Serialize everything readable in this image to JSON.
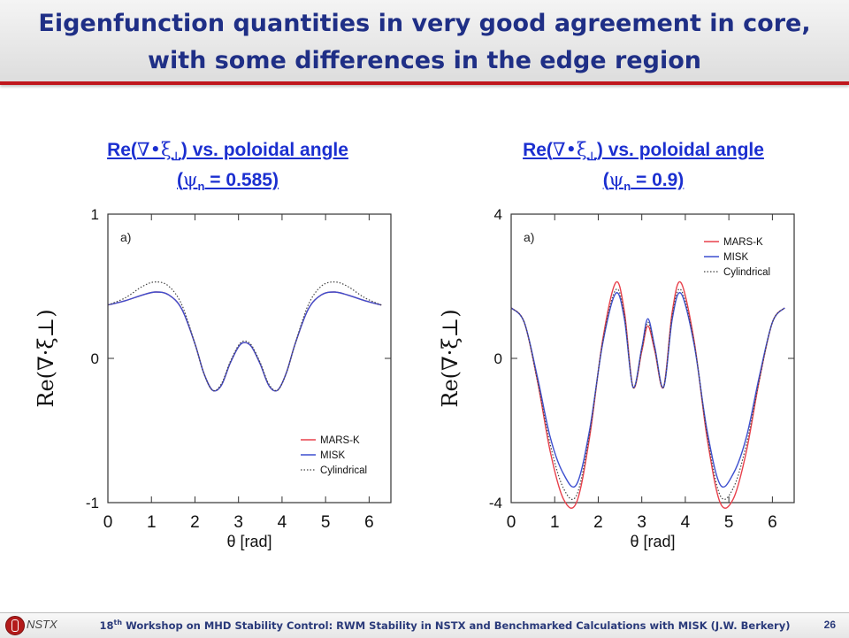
{
  "slide": {
    "title_line1": "Eigenfunction quantities in very good  agreement in core,",
    "title_line2": "with some differences in the edge region",
    "footer_brand": "NSTX",
    "footer_text_pre": "18",
    "footer_text_sup": "th",
    "footer_text_post": " Workshop on MHD Stability Control: RWM Stability in NSTX and Benchmarked Calculations with MISK (J.W. Berkery)",
    "page_number": "26",
    "colors": {
      "title": "#1f2f86",
      "heading": "#1b2fd0",
      "rule": "#c0161c",
      "mars": "#e8404b",
      "misk": "#3d4fcf",
      "cyl": "#444444"
    }
  },
  "panels": [
    {
      "heading_pre": "Re(",
      "heading_sym": "∇•ξ",
      "heading_sub": "⊥",
      "heading_post": ") vs. poloidal angle",
      "psi_pre": "(",
      "psi_sym": "ψ",
      "psi_sub": "n",
      "psi_post": " = 0.585)"
    },
    {
      "heading_pre": "Re(",
      "heading_sym": "∇•ξ",
      "heading_sub": "⊥",
      "heading_post": ") vs. poloidal angle",
      "psi_pre": "(",
      "psi_sym": "ψ",
      "psi_sub": "n",
      "psi_post": " = 0.9)"
    }
  ],
  "chart_data": [
    {
      "type": "line",
      "panel_label": "a)",
      "xlabel": "θ [rad]",
      "ylabel": "Re(∇·ξ⊥)",
      "xlim": [
        0,
        6.5
      ],
      "ylim": [
        -1,
        1
      ],
      "xticks": [
        0,
        1,
        2,
        3,
        4,
        5,
        6
      ],
      "yticks": [
        -1,
        0,
        1
      ],
      "legend_position": "bottom-right",
      "series": [
        {
          "name": "MARS-K",
          "style": "solid",
          "color": "#e8404b",
          "x": [
            0,
            0.4,
            0.8,
            1.1,
            1.4,
            1.7,
            2.0,
            2.2,
            2.4,
            2.6,
            2.8,
            3.0,
            3.14,
            3.3,
            3.5,
            3.7,
            3.9,
            4.1,
            4.3,
            4.6,
            4.9,
            5.2,
            5.5,
            5.9,
            6.28
          ],
          "y": [
            0.37,
            0.4,
            0.44,
            0.46,
            0.44,
            0.34,
            0.1,
            -0.1,
            -0.22,
            -0.19,
            -0.04,
            0.08,
            0.11,
            0.08,
            -0.04,
            -0.19,
            -0.22,
            -0.1,
            0.1,
            0.34,
            0.44,
            0.46,
            0.44,
            0.4,
            0.37
          ]
        },
        {
          "name": "MISK",
          "style": "solid",
          "color": "#3d4fcf",
          "x": [
            0,
            0.4,
            0.8,
            1.1,
            1.4,
            1.7,
            2.0,
            2.2,
            2.4,
            2.6,
            2.8,
            3.0,
            3.14,
            3.3,
            3.5,
            3.7,
            3.9,
            4.1,
            4.3,
            4.6,
            4.9,
            5.2,
            5.5,
            5.9,
            6.28
          ],
          "y": [
            0.37,
            0.4,
            0.44,
            0.46,
            0.44,
            0.34,
            0.1,
            -0.1,
            -0.22,
            -0.19,
            -0.04,
            0.08,
            0.11,
            0.08,
            -0.04,
            -0.19,
            -0.22,
            -0.1,
            0.1,
            0.34,
            0.44,
            0.46,
            0.44,
            0.4,
            0.37
          ]
        },
        {
          "name": "Cylindrical",
          "style": "dotted",
          "color": "#444444",
          "x": [
            0,
            0.4,
            0.8,
            1.1,
            1.4,
            1.7,
            2.0,
            2.2,
            2.4,
            2.6,
            2.8,
            3.0,
            3.14,
            3.3,
            3.5,
            3.7,
            3.9,
            4.1,
            4.3,
            4.6,
            4.9,
            5.2,
            5.5,
            5.9,
            6.28
          ],
          "y": [
            0.37,
            0.42,
            0.5,
            0.53,
            0.5,
            0.37,
            0.1,
            -0.1,
            -0.22,
            -0.18,
            -0.03,
            0.09,
            0.12,
            0.09,
            -0.03,
            -0.18,
            -0.22,
            -0.1,
            0.1,
            0.37,
            0.5,
            0.53,
            0.5,
            0.42,
            0.37
          ]
        }
      ]
    },
    {
      "type": "line",
      "panel_label": "a)",
      "xlabel": "θ [rad]",
      "ylabel": "Re(∇·ξ⊥)",
      "xlim": [
        0,
        6.5
      ],
      "ylim": [
        -4,
        4
      ],
      "xticks": [
        0,
        1,
        2,
        3,
        4,
        5,
        6
      ],
      "yticks": [
        -4,
        0,
        4
      ],
      "legend_position": "top-right",
      "series": [
        {
          "name": "MARS-K",
          "style": "solid",
          "color": "#e8404b",
          "x": [
            0,
            0.3,
            0.6,
            0.9,
            1.2,
            1.5,
            1.8,
            2.1,
            2.4,
            2.6,
            2.8,
            3.0,
            3.14,
            3.3,
            3.5,
            3.7,
            3.9,
            4.2,
            4.5,
            4.8,
            5.1,
            5.4,
            5.7,
            6.0,
            6.28
          ],
          "y": [
            1.4,
            1.0,
            -0.6,
            -2.6,
            -3.9,
            -4.0,
            -2.2,
            0.5,
            2.1,
            1.3,
            -0.8,
            0.2,
            0.9,
            0.2,
            -0.8,
            1.3,
            2.1,
            0.5,
            -2.2,
            -4.0,
            -3.9,
            -2.6,
            -0.6,
            1.0,
            1.4
          ]
        },
        {
          "name": "MISK",
          "style": "solid",
          "color": "#3d4fcf",
          "x": [
            0,
            0.3,
            0.6,
            0.9,
            1.2,
            1.5,
            1.8,
            2.1,
            2.4,
            2.6,
            2.8,
            3.0,
            3.14,
            3.3,
            3.5,
            3.7,
            3.9,
            4.2,
            4.5,
            4.8,
            5.1,
            5.4,
            5.7,
            6.0,
            6.28
          ],
          "y": [
            1.4,
            1.0,
            -0.5,
            -2.2,
            -3.2,
            -3.5,
            -2.0,
            0.4,
            1.8,
            1.1,
            -0.8,
            0.3,
            1.1,
            0.3,
            -0.8,
            1.1,
            1.8,
            0.4,
            -2.0,
            -3.5,
            -3.2,
            -2.2,
            -0.5,
            1.0,
            1.4
          ]
        },
        {
          "name": "Cylindrical",
          "style": "dotted",
          "color": "#444444",
          "x": [
            0,
            0.3,
            0.6,
            0.9,
            1.2,
            1.5,
            1.8,
            2.1,
            2.4,
            2.6,
            2.8,
            3.0,
            3.14,
            3.3,
            3.5,
            3.7,
            3.9,
            4.2,
            4.5,
            4.8,
            5.1,
            5.4,
            5.7,
            6.0,
            6.28
          ],
          "y": [
            1.4,
            1.0,
            -0.6,
            -2.4,
            -3.6,
            -3.8,
            -2.1,
            0.45,
            1.9,
            1.2,
            -0.8,
            0.25,
            1.0,
            0.25,
            -0.8,
            1.2,
            1.9,
            0.45,
            -2.1,
            -3.8,
            -3.6,
            -2.4,
            -0.6,
            1.0,
            1.4
          ]
        }
      ]
    }
  ]
}
